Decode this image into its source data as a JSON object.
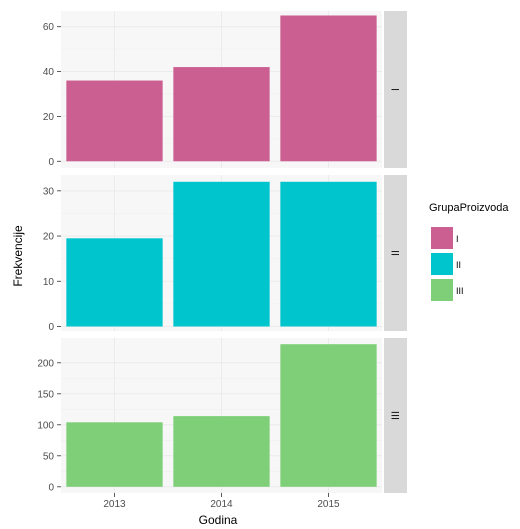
{
  "chart_data": {
    "type": "bar",
    "xlabel": "Godina",
    "ylabel": "Frekvencije",
    "categories": [
      "2013",
      "2014",
      "2015"
    ],
    "grid": true,
    "legend": {
      "title": "GrupaProizvoda",
      "position": "right",
      "entries": [
        {
          "label": "I",
          "color": "#cc5f91"
        },
        {
          "label": "II",
          "color": "#00c5cd"
        },
        {
          "label": "III",
          "color": "#7ecf78"
        }
      ]
    },
    "panels": [
      {
        "strip": "I",
        "color": "#cc5f91",
        "values": [
          36,
          42,
          65
        ],
        "ylim": [
          -3,
          67
        ],
        "yticks": [
          0,
          20,
          40,
          60
        ]
      },
      {
        "strip": "II",
        "color": "#00c5cd",
        "values": [
          19.5,
          32,
          32
        ],
        "ylim": [
          -1,
          33.5
        ],
        "yticks": [
          0,
          10,
          20,
          30
        ]
      },
      {
        "strip": "III",
        "color": "#7ecf78",
        "values": [
          104,
          114,
          230
        ],
        "ylim": [
          -10,
          240
        ],
        "yticks": [
          0,
          50,
          100,
          150,
          200
        ]
      }
    ]
  }
}
